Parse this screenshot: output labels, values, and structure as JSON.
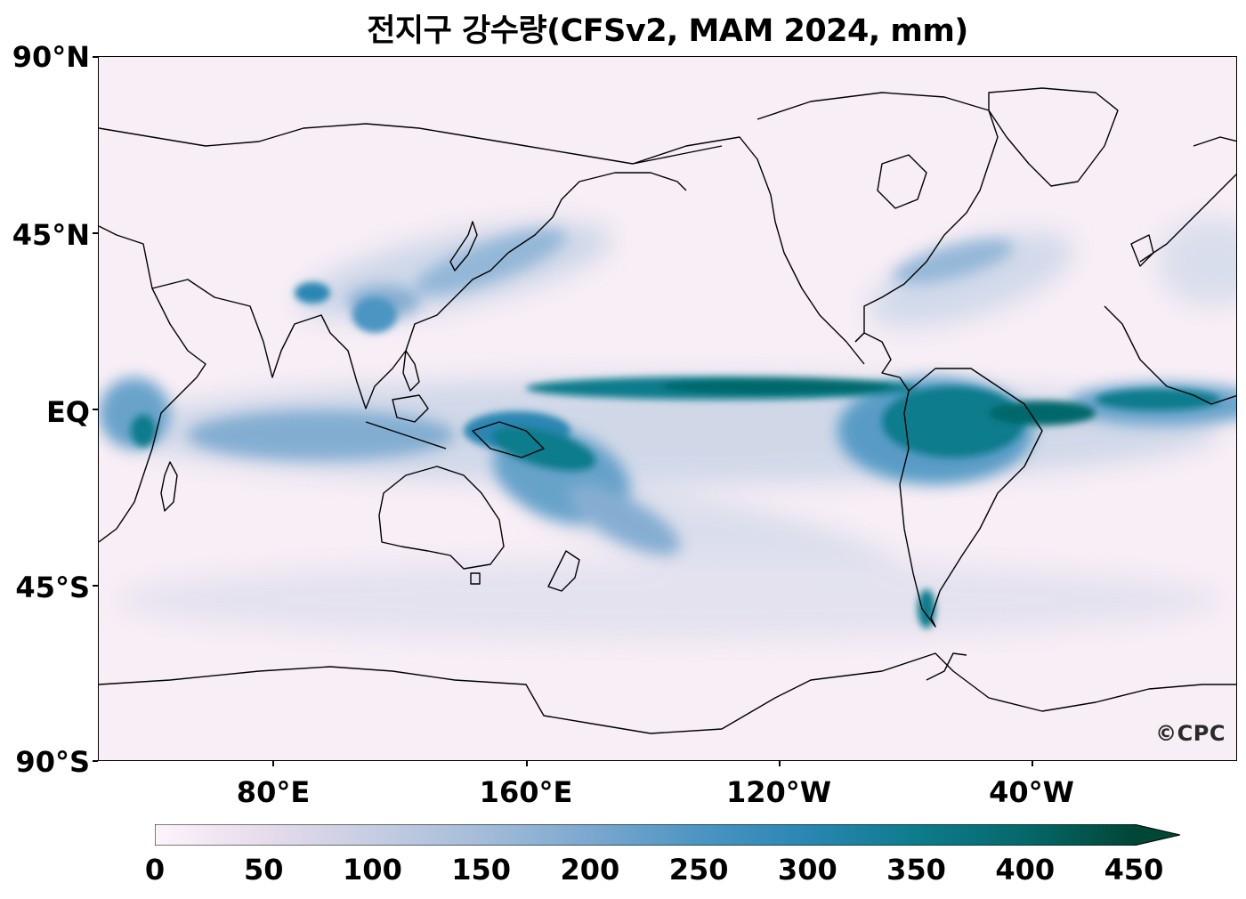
{
  "title": "전지구 강수량(CFSv2, MAM 2024, mm)",
  "watermark": "©CPC",
  "axes": {
    "y_ticks": [
      "90°N",
      "45°N",
      "EQ",
      "45°S",
      "90°S"
    ],
    "x_ticks": [
      "80°E",
      "160°E",
      "120°W",
      "40°W"
    ]
  },
  "colorbar": {
    "ticks": [
      "0",
      "50",
      "100",
      "150",
      "200",
      "250",
      "300",
      "350",
      "400",
      "450"
    ],
    "extend": "max",
    "colors": [
      "#fdf4fb",
      "#e6dcec",
      "#c7cde2",
      "#a4bcd8",
      "#7ba8cf",
      "#4c95c2",
      "#2a86b2",
      "#0d7c8c",
      "#05686a",
      "#014636"
    ]
  },
  "map": {
    "projection": "PlateCarree",
    "lon_range": [
      25,
      385
    ],
    "lat_range": [
      -90,
      90
    ],
    "ocean_background": "#f8eef6",
    "coastline_color": "#000000"
  }
}
